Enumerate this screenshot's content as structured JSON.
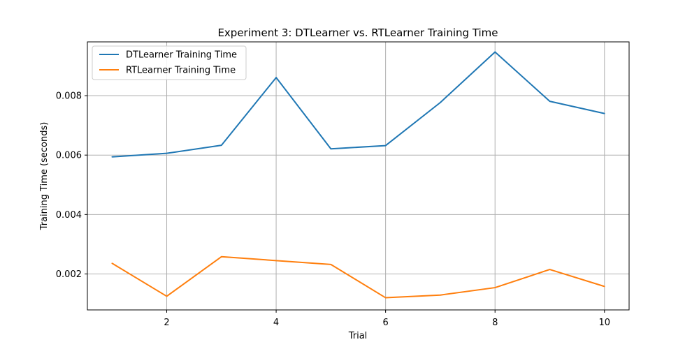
{
  "chart_data": {
    "type": "line",
    "title": "Experiment 3: DTLearner vs. RTLearner Training Time",
    "xlabel": "Trial",
    "ylabel": "Training Time (seconds)",
    "x": [
      1,
      2,
      3,
      4,
      5,
      6,
      7,
      8,
      9,
      10
    ],
    "xlim": [
      0.55,
      10.45
    ],
    "ylim": [
      0.00079,
      0.00981
    ],
    "xticks": [
      2,
      4,
      6,
      8,
      10
    ],
    "xtick_labels": [
      "2",
      "4",
      "6",
      "8",
      "10"
    ],
    "yticks": [
      0.002,
      0.004,
      0.006,
      0.008
    ],
    "ytick_labels": [
      "0.002",
      "0.004",
      "0.006",
      "0.008"
    ],
    "grid": true,
    "legend_position": "top-left",
    "series": [
      {
        "name": "DTLearner Training Time",
        "color": "#1f77b4",
        "values": [
          0.00594,
          0.00606,
          0.00633,
          0.00861,
          0.00621,
          0.00632,
          0.00777,
          0.00947,
          0.00781,
          0.0074
        ]
      },
      {
        "name": "RTLearner Training Time",
        "color": "#ff7f0e",
        "values": [
          0.00236,
          0.00125,
          0.00258,
          0.00245,
          0.00232,
          0.0012,
          0.00129,
          0.00154,
          0.00215,
          0.00158
        ]
      }
    ]
  }
}
